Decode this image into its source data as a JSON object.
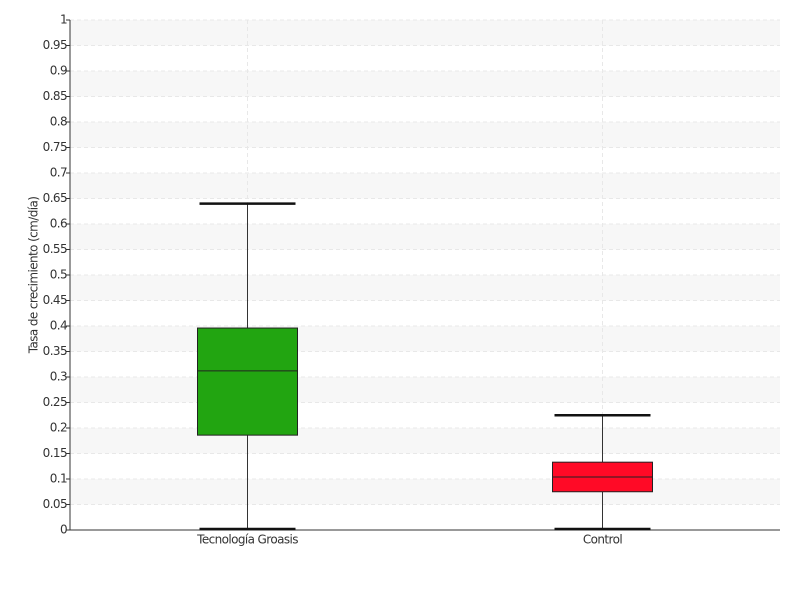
{
  "chart_data": {
    "type": "box",
    "ylabel": "Tasa de crecimiento (cm/día)",
    "categories": [
      "Tecnología Groasis",
      "Control"
    ],
    "boxes": [
      {
        "min": 0,
        "q1": 0.186,
        "median": 0.312,
        "q3": 0.396,
        "max": 0.64,
        "color": "#22a511"
      },
      {
        "min": 0,
        "q1": 0.075,
        "median": 0.104,
        "q3": 0.133,
        "max": 0.225,
        "color": "#ff0a26"
      }
    ],
    "ylim": [
      0,
      1
    ],
    "yticks": [
      0,
      0.05,
      0.1,
      0.15,
      0.2,
      0.25,
      0.3,
      0.35,
      0.4,
      0.45,
      0.5,
      0.55,
      0.6,
      0.65,
      0.7,
      0.75,
      0.8,
      0.85,
      0.9,
      0.95,
      1
    ],
    "grid": true
  }
}
